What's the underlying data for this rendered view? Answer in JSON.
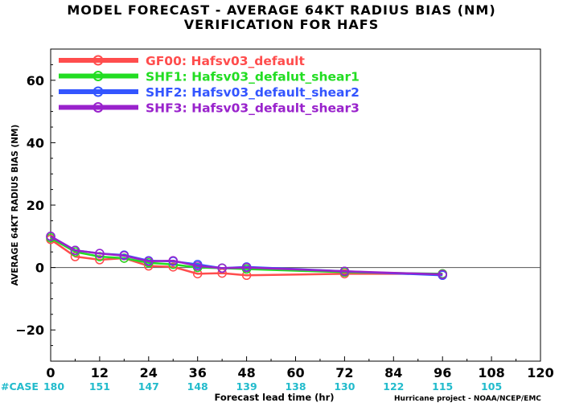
{
  "title_line1": "MODEL FORECAST - AVERAGE 64KT RADIUS BIAS (NM)",
  "title_line2": "VERIFICATION FOR HAFS",
  "footnote": "Hurricane project - NOAA/NCEP/EMC",
  "chart_data": {
    "type": "line",
    "xlabel": "Forecast lead time (hr)",
    "ylabel": "AVERAGE 64KT RADIUS BIAS (NM)",
    "xlim": [
      0,
      120
    ],
    "ylim": [
      -30,
      70
    ],
    "xticks": [
      0,
      12,
      24,
      36,
      48,
      60,
      72,
      84,
      96,
      108,
      120
    ],
    "yticks": [
      -20,
      0,
      20,
      40,
      60
    ],
    "ytick_labels": [
      "−20",
      "0",
      "20",
      "40",
      "60"
    ],
    "zero_line": true,
    "grid": false,
    "legend_position": "top-left",
    "case_label": "#CASE",
    "case_counts": [
      {
        "x": 0,
        "label": "180"
      },
      {
        "x": 12,
        "label": "151"
      },
      {
        "x": 24,
        "label": "147"
      },
      {
        "x": 36,
        "label": "148"
      },
      {
        "x": 48,
        "label": "139"
      },
      {
        "x": 60,
        "label": "138"
      },
      {
        "x": 72,
        "label": "130"
      },
      {
        "x": 84,
        "label": "122"
      },
      {
        "x": 96,
        "label": "115"
      },
      {
        "x": 108,
        "label": "105"
      }
    ],
    "x": [
      0,
      6,
      12,
      18,
      24,
      30,
      36,
      42,
      48,
      72,
      96
    ],
    "series": [
      {
        "name": "GF00: Hafsv03_default",
        "color": "#ff4d4d",
        "values": [
          9,
          3.5,
          2.5,
          3,
          0.5,
          0.2,
          -2,
          -1.8,
          -2.5,
          -2,
          -2
        ]
      },
      {
        "name": "SHF1: Hafsv03_defalut_shear1",
        "color": "#22dd22",
        "values": [
          9.5,
          5,
          3.5,
          3,
          1.5,
          1,
          0,
          -0.2,
          -0.5,
          -1.5,
          -2
        ]
      },
      {
        "name": "SHF2: Hafsv03_default_shear2",
        "color": "#3355ff",
        "values": [
          10,
          5.5,
          4.5,
          4,
          2.2,
          2,
          1,
          -0.2,
          0.2,
          -1.2,
          -2.5
        ]
      },
      {
        "name": "SHF3: Hafsv03_default_shear3",
        "color": "#9922cc",
        "values": [
          10,
          5.5,
          4.5,
          3.8,
          2,
          2.2,
          0.5,
          -0.2,
          0,
          -1.2,
          -2.2
        ]
      }
    ],
    "colors": {
      "case_counts": "#22bbcc",
      "axis": "#000000",
      "zero_line": "#555555"
    }
  }
}
